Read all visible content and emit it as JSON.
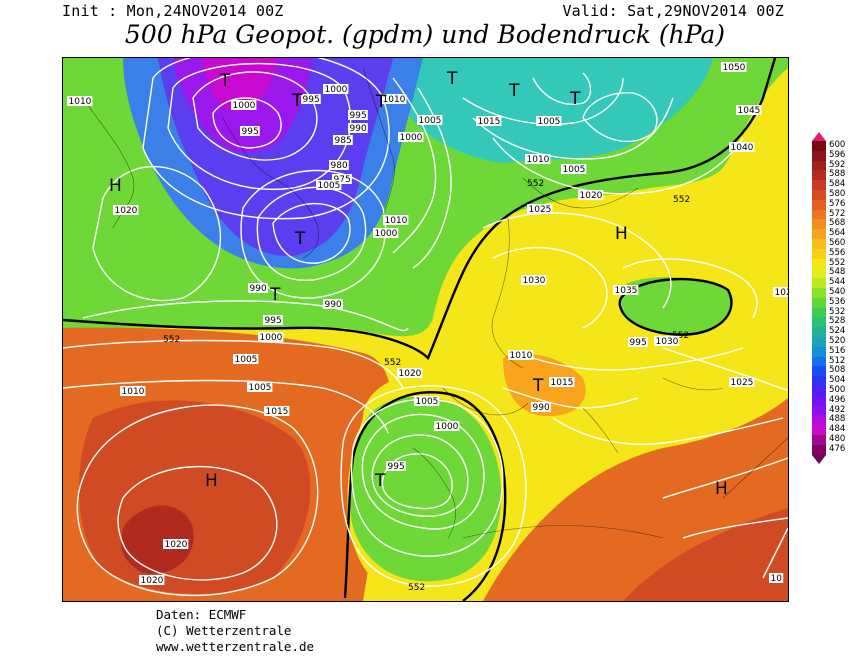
{
  "header": {
    "init": "Init : Mon,24NOV2014 00Z",
    "valid": "Valid: Sat,29NOV2014 00Z",
    "title": "500 hPa Geopot. (gpdm) und Bodendruck (hPa)"
  },
  "colorbar": {
    "labels": [
      "600",
      "596",
      "592",
      "588",
      "584",
      "580",
      "576",
      "572",
      "568",
      "564",
      "560",
      "556",
      "552",
      "548",
      "544",
      "540",
      "536",
      "532",
      "528",
      "524",
      "520",
      "516",
      "512",
      "508",
      "504",
      "500",
      "496",
      "492",
      "488",
      "484",
      "480",
      "476"
    ],
    "colors": [
      "#7a0a12",
      "#8c1418",
      "#a0201e",
      "#b42a22",
      "#c83a24",
      "#d84c24",
      "#e45e22",
      "#ee7420",
      "#f48c1e",
      "#f8a41c",
      "#fabc1a",
      "#f8d018",
      "#f4e618",
      "#e4ee1a",
      "#bce81e",
      "#8ee028",
      "#5ed838",
      "#3ccc50",
      "#2cc070",
      "#20b494",
      "#1ca4b8",
      "#1890d8",
      "#1470ec",
      "#1a4cf0",
      "#3030f0",
      "#5020f0",
      "#7014f0",
      "#9010ec",
      "#b00ce0",
      "#c80ad0",
      "#a00890",
      "#800066"
    ],
    "top_color": "#e0206a",
    "bottom_color": "#70005a"
  },
  "map": {
    "isohypse_label": "552",
    "pressure_labels": [
      "1010",
      "1000",
      "995",
      "995",
      "1000",
      "995",
      "990",
      "985",
      "980",
      "975",
      "1005",
      "1010",
      "1005",
      "1000",
      "1010",
      "1000",
      "1015",
      "1005",
      "1010",
      "1005",
      "1020",
      "1050",
      "1045",
      "1040",
      "1020",
      "1025",
      "1030",
      "1035",
      "1030",
      "1025",
      "1025",
      "990",
      "990",
      "995",
      "1000",
      "1005",
      "1010",
      "1005",
      "1015",
      "1020",
      "1005",
      "1000",
      "995",
      "990",
      "995",
      "1010",
      "1015",
      "1020",
      "1020",
      "10"
    ],
    "centers": [
      "T",
      "T",
      "T",
      "T",
      "T",
      "T",
      "T",
      "T",
      "T",
      "T",
      "H",
      "H",
      "H",
      "H"
    ]
  },
  "footer": {
    "line1": "Daten: ECMWF",
    "line2": "(C) Wetterzentrale",
    "line3": "www.wetterzentrale.de"
  }
}
